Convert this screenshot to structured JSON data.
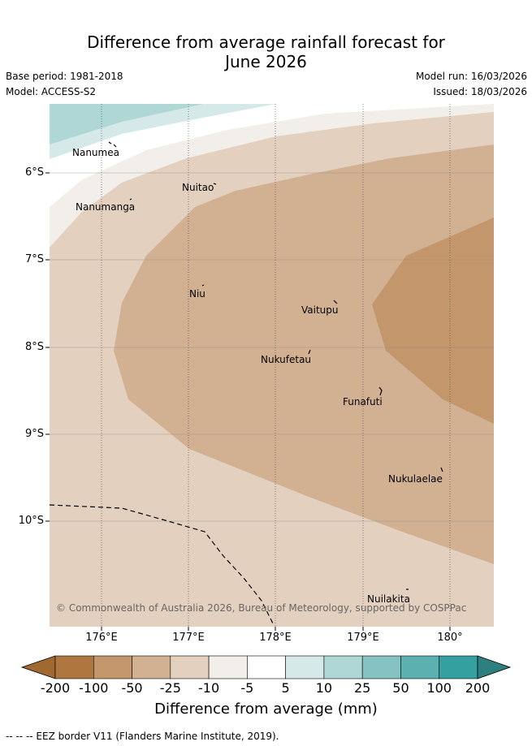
{
  "title_line1": "Difference from average rainfall forecast for",
  "title_line2": "June 2026",
  "base_period": "Base period: 1981-2018",
  "model": "Model: ACCESS-S2",
  "model_run": "Model run: 16/03/2026",
  "issued": "Issued: 18/03/2026",
  "islands": [
    "Nanumea",
    "Nuitao",
    "Nanumanga",
    "Niu",
    "Vaitupu",
    "Nukufetau",
    "Funafuti",
    "Nukulaelae",
    "Nuilakita"
  ],
  "lat_ticks": [
    "6°S",
    "7°S",
    "8°S",
    "9°S",
    "10°S"
  ],
  "lon_ticks": [
    "176°E",
    "177°E",
    "178°E",
    "179°E",
    "180°"
  ],
  "copyright": "© Commonwealth of Australia 2026, Bureau of Meteorology, supported by COSPPac",
  "colorbar": {
    "labels": [
      "-200",
      "-100",
      "-50",
      "-25",
      "-10",
      "-5",
      "5",
      "10",
      "25",
      "50",
      "100",
      "200"
    ],
    "colors": [
      "#a0692f",
      "#b07640",
      "#c3976b",
      "#d2b193",
      "#e3d0bf",
      "#f2eee9",
      "#ffffff",
      "#d5e9e8",
      "#afd7d6",
      "#86c2c1",
      "#5cb0af",
      "#34a09f",
      "#2d8080"
    ],
    "title": "Difference from average (mm)"
  },
  "footer": "--  --  -- EEZ border V11 (Flanders Marine Institute, 2019)."
}
